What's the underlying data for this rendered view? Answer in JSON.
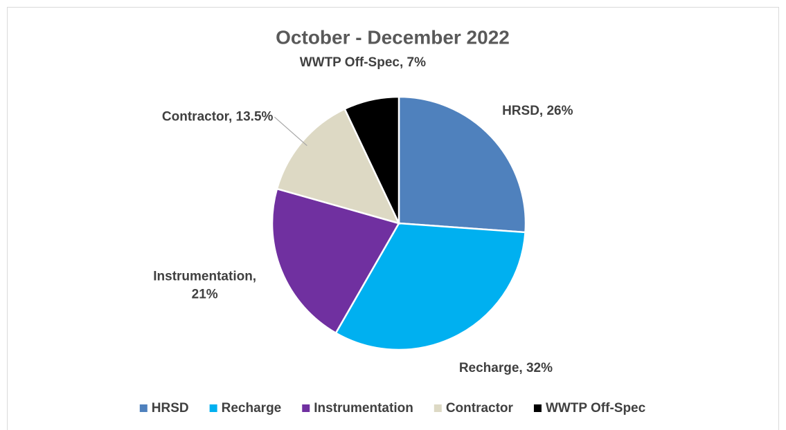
{
  "chart_data": {
    "type": "pie",
    "title": "October - December 2022",
    "categories": [
      "HRSD",
      "Recharge",
      "Instrumentation",
      "Contractor",
      "WWTP Off-Spec"
    ],
    "values": [
      26,
      32,
      21,
      13.5,
      7
    ],
    "value_labels": [
      "HRSD, 26%",
      "Recharge, 32%",
      "Instrumentation, 21%",
      "Contractor, 13.5%",
      "WWTP Off-Spec, 7%"
    ],
    "colors": [
      "#4f81bd",
      "#00b0f0",
      "#7030a0",
      "#ddd9c4",
      "#000000"
    ],
    "legend": "bottom"
  }
}
